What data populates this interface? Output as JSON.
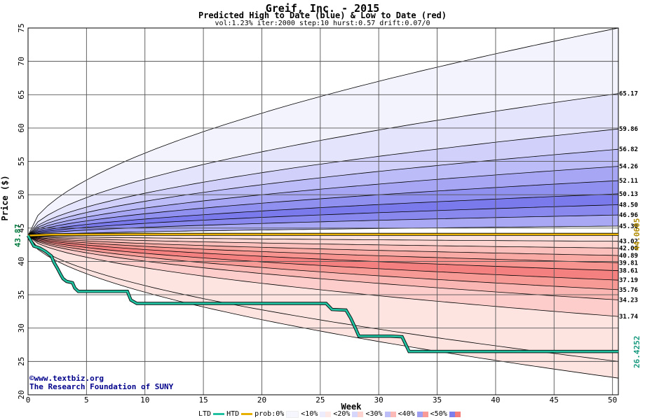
{
  "title": "Greif, Inc. - 2015",
  "subtitle": "Predicted High to Date (blue) &  Low to Date (red)",
  "params": "vol:1.23% iter:2000 step:10 hurst:0.57 drift:0.07/0",
  "credit_url": "©www.textbiz.org",
  "credit_org": "The Research Foundation of SUNY",
  "chart_data": {
    "type": "area",
    "xlabel": "Week",
    "ylabel": "Price ($)",
    "xlim": [
      0,
      50.5
    ],
    "ylim": [
      20,
      75
    ],
    "xticks": [
      0,
      5,
      10,
      15,
      20,
      25,
      30,
      35,
      40,
      45,
      50
    ],
    "yticks": [
      20,
      25,
      30,
      35,
      40,
      45,
      50,
      55,
      60,
      65,
      70,
      75
    ],
    "start_price": 43.87,
    "start_label": "43.87",
    "right_labels_high": [
      "65.17",
      "59.86",
      "56.82",
      "54.26",
      "52.11",
      "50.13",
      "48.50",
      "46.96",
      "45.30"
    ],
    "right_labels_low": [
      "43.02",
      "42.00",
      "40.89",
      "39.81",
      "38.61",
      "37.19",
      "35.76",
      "34.23",
      "31.74"
    ],
    "high_band_values": [
      75.0,
      65.17,
      59.86,
      56.82,
      54.26,
      52.11,
      50.13,
      48.5,
      46.96,
      45.3
    ],
    "low_band_values": [
      43.02,
      42.0,
      40.89,
      39.81,
      38.61,
      37.19,
      35.76,
      34.23,
      31.74,
      25.0,
      22.5
    ],
    "ltd_value": 26.4252,
    "ltd_label": "26.4252",
    "htd_value": 44.0605,
    "htd_label": "44.0605",
    "ltd_path": [
      [
        0,
        43.87
      ],
      [
        0.5,
        42.3
      ],
      [
        1,
        42.0
      ],
      [
        1.5,
        41.5
      ],
      [
        2,
        40.8
      ],
      [
        2.2,
        39.9
      ],
      [
        2.5,
        39.0
      ],
      [
        2.8,
        38.0
      ],
      [
        3,
        37.4
      ],
      [
        3.3,
        37.0
      ],
      [
        3.8,
        36.8
      ],
      [
        4,
        36.0
      ],
      [
        4.3,
        35.5
      ],
      [
        8.5,
        35.5
      ],
      [
        8.8,
        34.2
      ],
      [
        9.3,
        33.7
      ],
      [
        25.5,
        33.7
      ],
      [
        26,
        32.8
      ],
      [
        27.2,
        32.7
      ],
      [
        27.6,
        31.5
      ],
      [
        28,
        30.0
      ],
      [
        28.3,
        28.8
      ],
      [
        31,
        28.8
      ],
      [
        32,
        28.7
      ],
      [
        32.6,
        26.5
      ],
      [
        50.5,
        26.5
      ]
    ],
    "htd_path": [
      [
        0,
        43.87
      ],
      [
        2,
        44.02
      ],
      [
        6.5,
        44.06
      ],
      [
        50.5,
        44.06
      ]
    ],
    "legend": {
      "ltd": "LTD",
      "htd": "HTD",
      "prob": "prob:0%",
      "items": [
        "<10%",
        "<20%",
        "<30%",
        "<40%",
        "<50%"
      ]
    },
    "colors": {
      "ltd": "#20c0a0",
      "htd": "#e8b000",
      "blue_bands": [
        "#f3f3fe",
        "#e4e4fc",
        "#d0d0fa",
        "#bcbcf8",
        "#a6a6f4",
        "#9090f0",
        "#7a7aec",
        "#8888ee",
        "#a8a8f4"
      ],
      "red_bands": [
        "#fbe4e2",
        "#fdd4d0",
        "#fbc0bc",
        "#faaaa4",
        "#f79490",
        "#f58080",
        "#f79a96",
        "#fab6b2",
        "#fccdca",
        "#fde4e1"
      ],
      "grid": "#555555"
    }
  }
}
